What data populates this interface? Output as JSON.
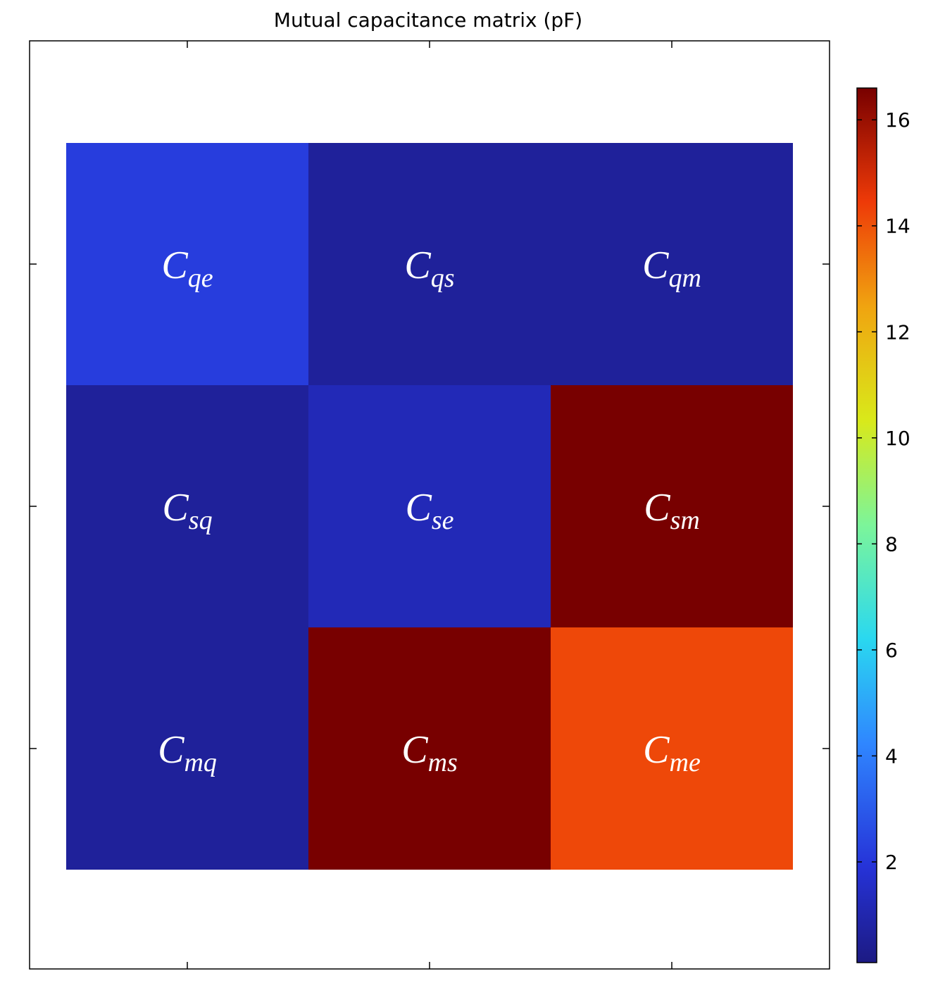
{
  "chart_data": {
    "type": "heatmap",
    "title": "Mutual capacitance matrix (pF)",
    "xlabel": "",
    "ylabel": "",
    "colormap": "jet",
    "rows": 3,
    "cols": 3,
    "cells": [
      [
        {
          "label_main": "C",
          "label_sub": "qe",
          "value": 2.2
        },
        {
          "label_main": "C",
          "label_sub": "qs",
          "value": 0.6
        },
        {
          "label_main": "C",
          "label_sub": "qm",
          "value": 0.6
        }
      ],
      [
        {
          "label_main": "C",
          "label_sub": "sq",
          "value": 0.6
        },
        {
          "label_main": "C",
          "label_sub": "se",
          "value": 1.2
        },
        {
          "label_main": "C",
          "label_sub": "sm",
          "value": 16.6
        }
      ],
      [
        {
          "label_main": "C",
          "label_sub": "mq",
          "value": 0.6
        },
        {
          "label_main": "C",
          "label_sub": "ms",
          "value": 16.6
        },
        {
          "label_main": "C",
          "label_sub": "me",
          "value": 14.2
        }
      ]
    ],
    "colorbar": {
      "range": [
        0.1,
        16.6
      ],
      "ticks": [
        2,
        4,
        6,
        8,
        10,
        12,
        14,
        16
      ]
    },
    "grid": false
  }
}
